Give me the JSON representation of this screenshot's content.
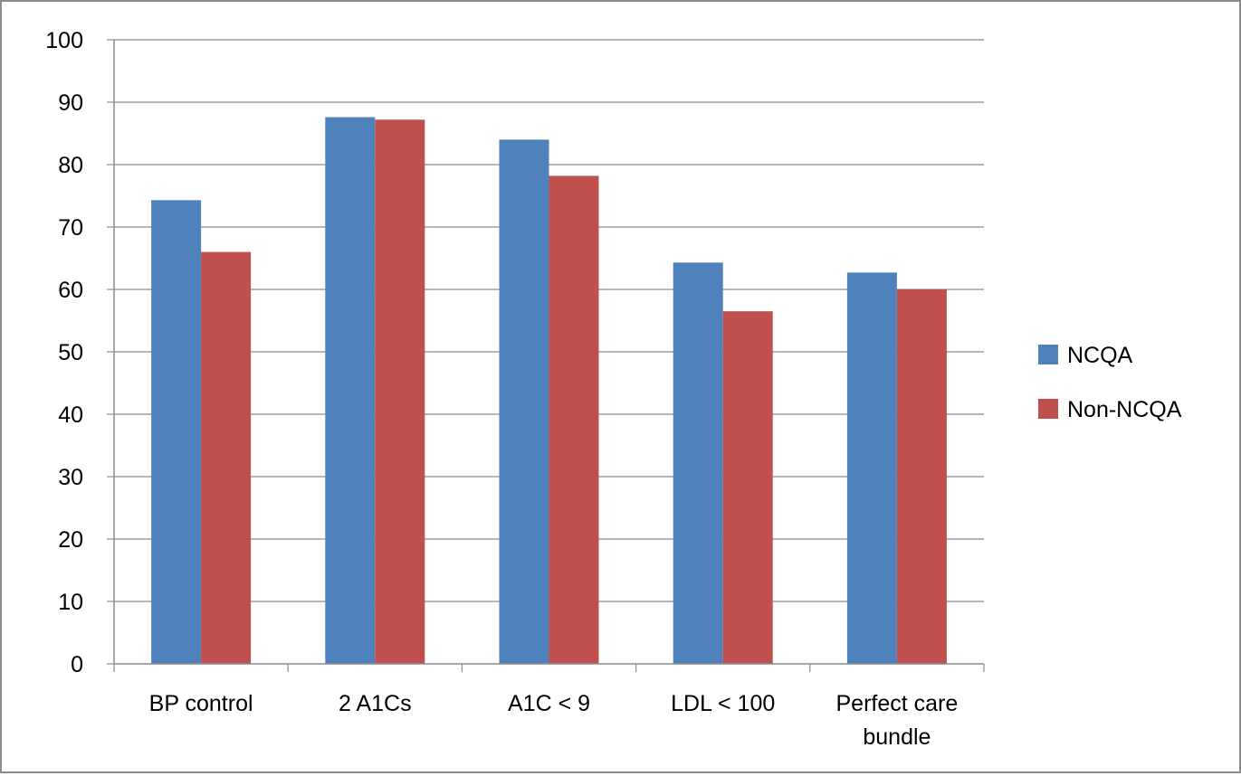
{
  "chart_data": {
    "type": "bar",
    "title": "",
    "xlabel": "",
    "ylabel": "",
    "categories": [
      [
        "BP control"
      ],
      [
        "2 A1Cs"
      ],
      [
        "A1C < 9"
      ],
      [
        "LDL < 100"
      ],
      [
        "Perfect care",
        "bundle"
      ]
    ],
    "series": [
      {
        "name": "NCQA",
        "color": "#4f81bd",
        "values": [
          74.3,
          87.6,
          84.0,
          64.3,
          62.7
        ]
      },
      {
        "name": "Non-NCQA",
        "color": "#c0504d",
        "values": [
          66.0,
          87.2,
          78.2,
          56.5,
          60.0
        ]
      }
    ],
    "ylim": [
      0,
      100
    ],
    "yticks": [
      0,
      10,
      20,
      30,
      40,
      50,
      60,
      70,
      80,
      90,
      100
    ],
    "grid": true,
    "legend_position": "right",
    "gridline_color": "#8c8c8c",
    "axis_color": "#8c8c8c"
  }
}
